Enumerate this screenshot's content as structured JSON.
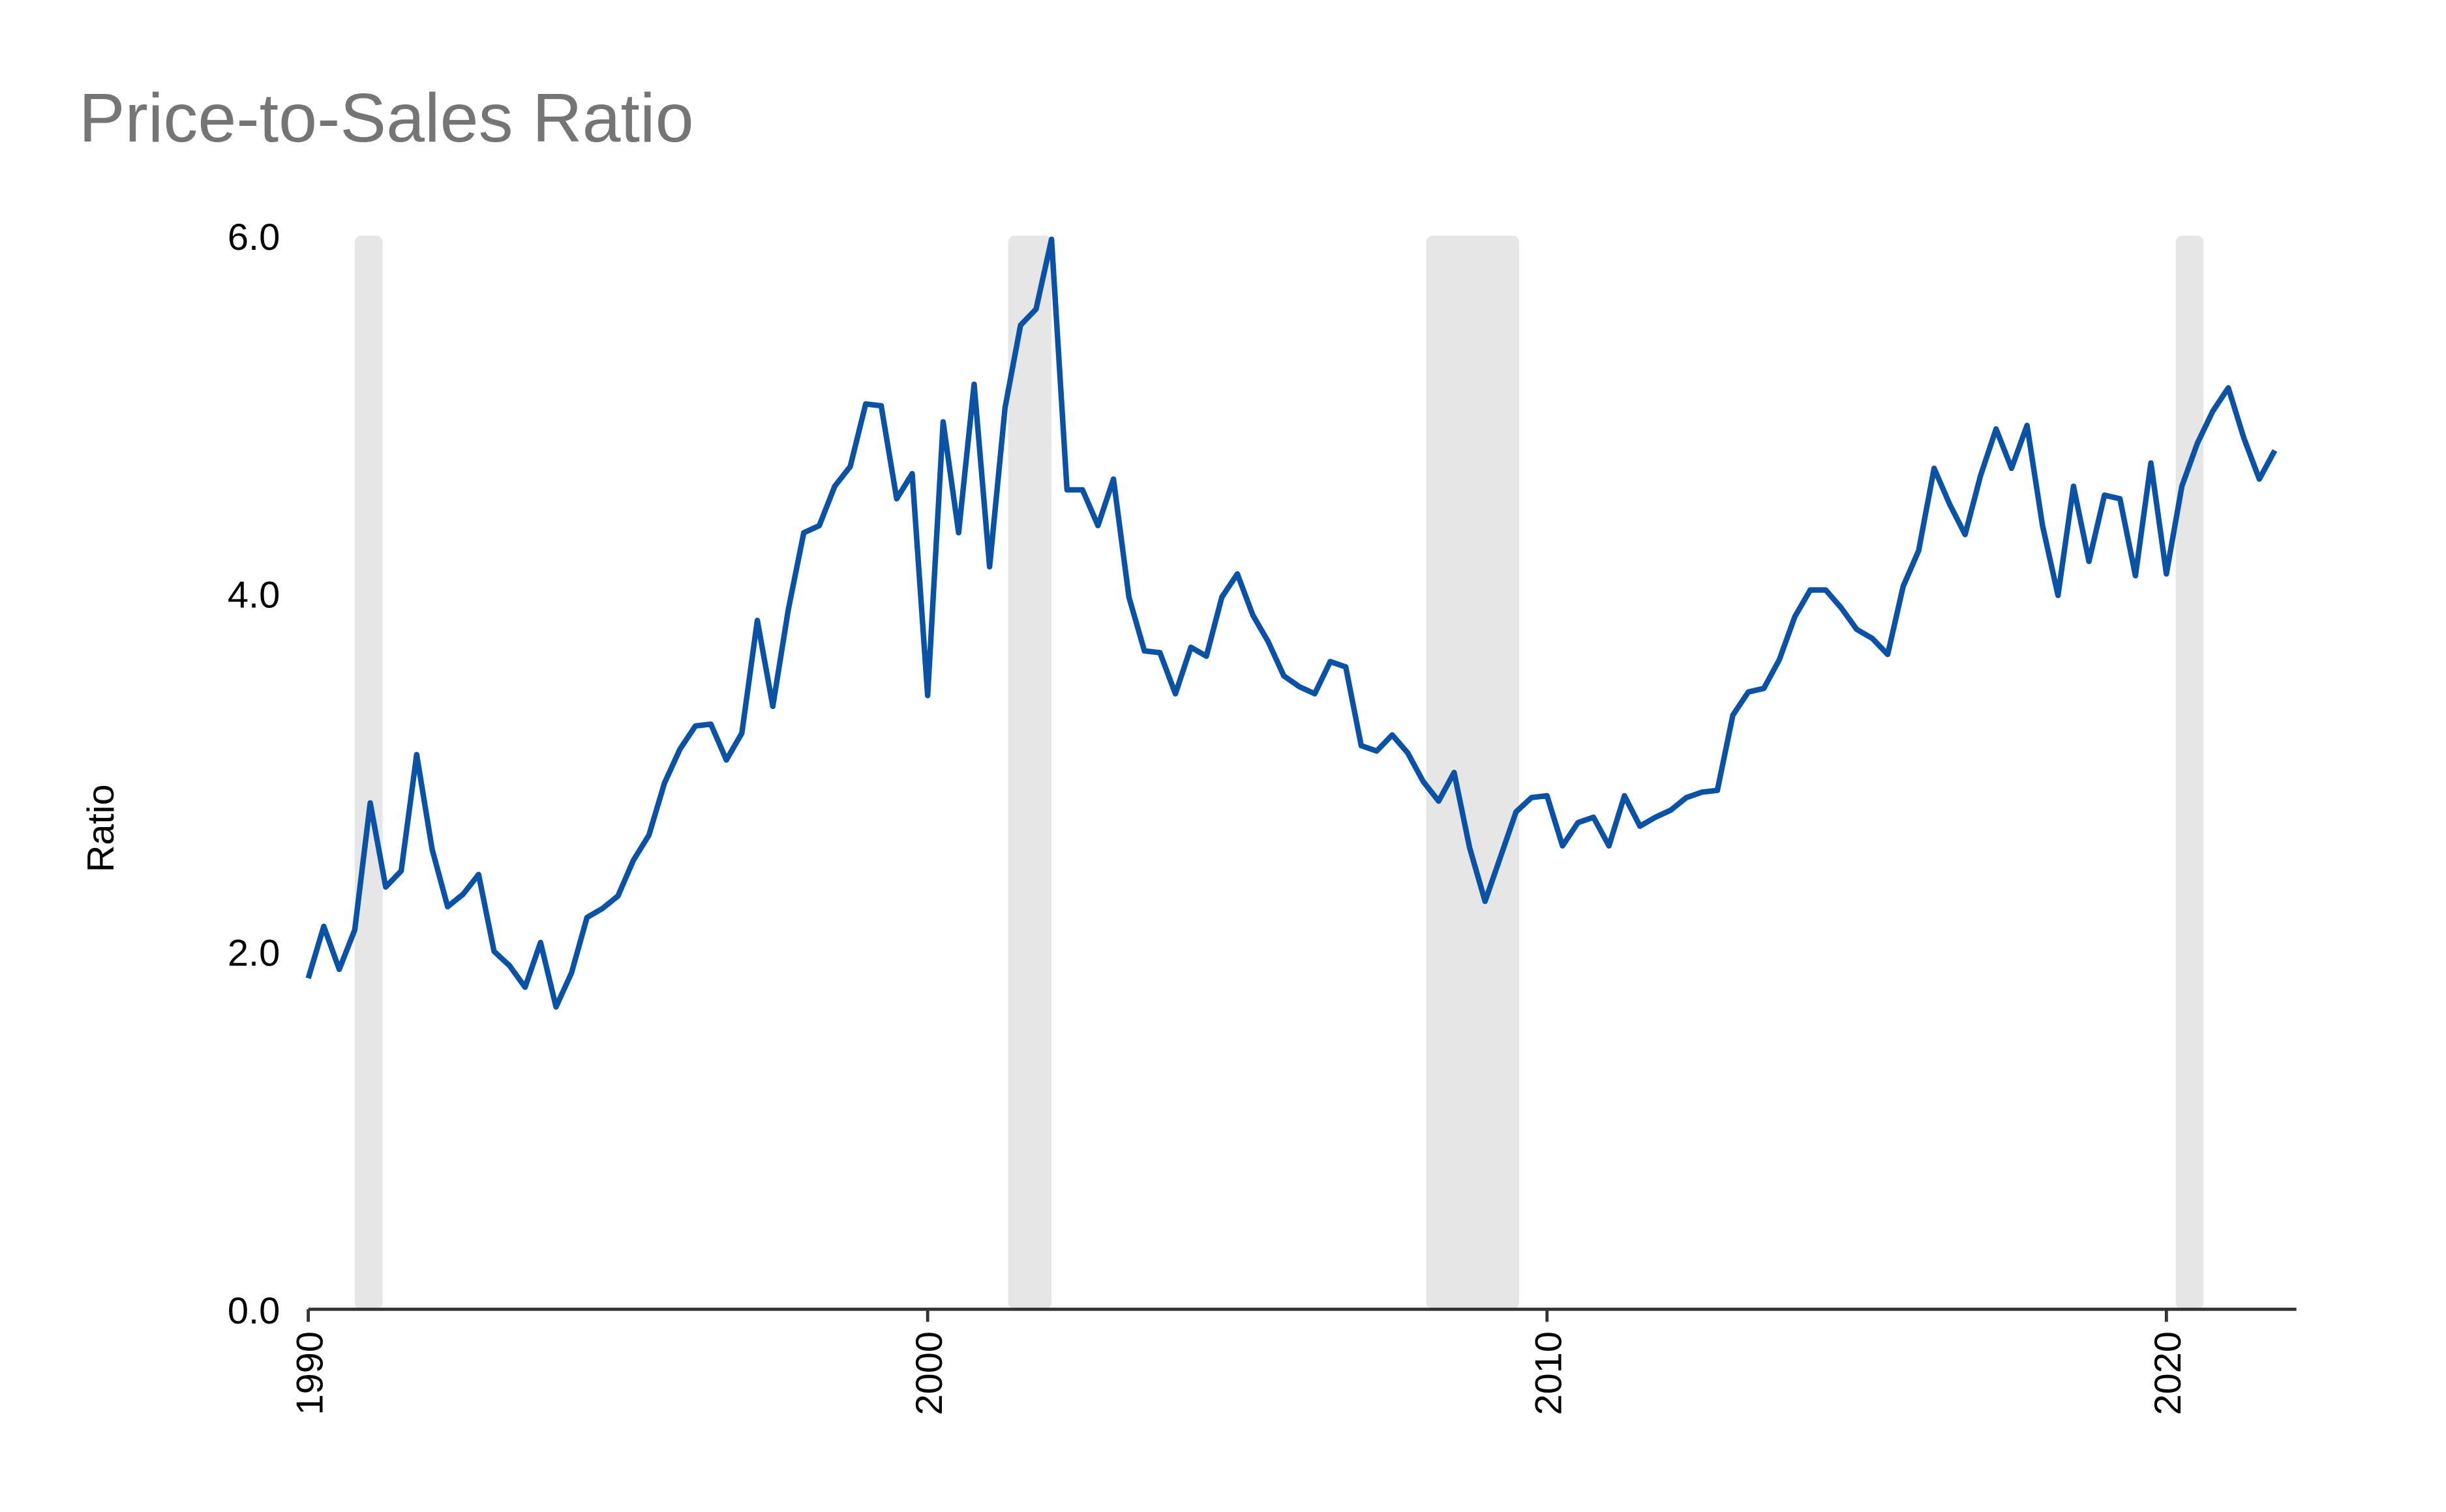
{
  "chart_data": {
    "type": "line",
    "title": "Price-to-Sales Ratio",
    "y_label": "Ratio",
    "x": [
      1990,
      1990.25,
      1990.5,
      1990.75,
      1991,
      1991.25,
      1991.5,
      1991.75,
      1992,
      1992.25,
      1992.5,
      1992.75,
      1993,
      1993.25,
      1993.5,
      1993.75,
      1994,
      1994.25,
      1994.5,
      1994.75,
      1995,
      1995.25,
      1995.5,
      1995.75,
      1996,
      1996.25,
      1996.5,
      1996.75,
      1997,
      1997.25,
      1997.5,
      1997.75,
      1998,
      1998.25,
      1998.5,
      1998.75,
      1999,
      1999.25,
      1999.5,
      1999.75,
      2000,
      2000.25,
      2000.5,
      2000.75,
      2001,
      2001.25,
      2001.5,
      2001.75,
      2002,
      2002.25,
      2002.5,
      2002.75,
      2003,
      2003.25,
      2003.5,
      2003.75,
      2004,
      2004.25,
      2004.5,
      2004.75,
      2005,
      2005.25,
      2005.5,
      2005.75,
      2006,
      2006.25,
      2006.5,
      2006.75,
      2007,
      2007.25,
      2007.5,
      2007.75,
      2008,
      2008.25,
      2008.5,
      2008.75,
      2009,
      2009.25,
      2009.5,
      2009.75,
      2010,
      2010.25,
      2010.5,
      2010.75,
      2011,
      2011.25,
      2011.5,
      2011.75,
      2012,
      2012.25,
      2012.5,
      2012.75,
      2013,
      2013.25,
      2013.5,
      2013.75,
      2014,
      2014.25,
      2014.5,
      2014.75,
      2015,
      2015.25,
      2015.5,
      2015.75,
      2016,
      2016.25,
      2016.5,
      2016.75,
      2017,
      2017.25,
      2017.5,
      2017.75,
      2018,
      2018.25,
      2018.5,
      2018.75,
      2019,
      2019.25,
      2019.5,
      2019.75,
      2020,
      2020.25,
      2020.5,
      2020.75,
      2021,
      2021.25,
      2021.5,
      2021.75
    ],
    "series": [
      {
        "color": "#0a52a5",
        "values": [
          1.85,
          2.14,
          1.9,
          2.12,
          2.83,
          2.36,
          2.45,
          3.1,
          2.57,
          2.25,
          2.32,
          2.43,
          2.0,
          1.92,
          1.8,
          2.05,
          1.69,
          1.88,
          2.19,
          2.24,
          2.31,
          2.51,
          2.65,
          2.94,
          3.13,
          3.26,
          3.27,
          3.07,
          3.22,
          3.85,
          3.37,
          3.91,
          4.34,
          4.38,
          4.6,
          4.71,
          5.06,
          5.05,
          4.53,
          4.67,
          3.43,
          4.96,
          4.34,
          5.17,
          4.15,
          5.04,
          5.5,
          5.59,
          5.98,
          4.58,
          4.58,
          4.38,
          4.64,
          3.98,
          3.68,
          3.67,
          3.44,
          3.7,
          3.65,
          3.98,
          4.11,
          3.88,
          3.73,
          3.54,
          3.48,
          3.44,
          3.62,
          3.59,
          3.15,
          3.12,
          3.21,
          3.11,
          2.95,
          2.84,
          3.0,
          2.58,
          2.28,
          2.53,
          2.78,
          2.86,
          2.87,
          2.59,
          2.72,
          2.75,
          2.59,
          2.87,
          2.7,
          2.75,
          2.79,
          2.86,
          2.89,
          2.9,
          3.32,
          3.45,
          3.47,
          3.63,
          3.87,
          4.02,
          4.02,
          3.92,
          3.8,
          3.75,
          3.66,
          4.04,
          4.24,
          4.7,
          4.5,
          4.33,
          4.66,
          4.92,
          4.7,
          4.94,
          4.38,
          3.99,
          4.6,
          4.18,
          4.55,
          4.53,
          4.1,
          4.73,
          4.11,
          4.6,
          4.84,
          5.02,
          5.15,
          4.87,
          4.64,
          4.8
        ]
      }
    ],
    "recessions": [
      [
        1990.75,
        1991.2
      ],
      [
        2001.3,
        2002.0
      ],
      [
        2008.05,
        2009.55
      ],
      [
        2020.15,
        2020.6
      ]
    ],
    "recession_color": "#e6e6e6",
    "xlim": [
      1990,
      2022.1
    ],
    "xticks": [
      1990,
      2000,
      2010,
      2020
    ],
    "ylim": [
      0,
      6
    ],
    "yticks": [
      {
        "value": 0,
        "label": "0.0"
      },
      {
        "value": 2,
        "label": "2.0"
      },
      {
        "value": 4,
        "label": "4.0"
      },
      {
        "value": 6,
        "label": "6.0"
      }
    ],
    "grid": false
  }
}
